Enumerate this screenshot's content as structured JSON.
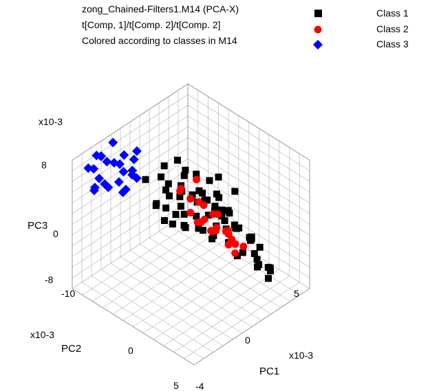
{
  "chart_data": {
    "type": "scatter",
    "title_lines": [
      "zong_Chained-Filters1.M14 (PCA-X)",
      "t[Comp, 1]/t[Comp. 2]/t[Comp. 2]",
      "Colored according to classes in M14"
    ],
    "legend_placement": "top-right",
    "axes": {
      "pc1": {
        "label": "PC1",
        "scale": "x10-3",
        "ticks": [
          "-4",
          "0",
          "5"
        ]
      },
      "pc2": {
        "label": "PC2",
        "scale": "x10-3",
        "ticks": [
          "-10",
          "0",
          "5"
        ]
      },
      "pc3": {
        "label": "PC3",
        "scale": "x10-3",
        "ticks": [
          "8",
          "0",
          "-8"
        ]
      }
    },
    "ranges": {
      "pc1": [
        -4,
        7
      ],
      "pc2": [
        -10,
        5
      ],
      "pc3": [
        -8,
        8
      ]
    },
    "grid": true,
    "series": [
      {
        "name": "Class 1",
        "color": "#000000",
        "marker": "square",
        "points": [
          [
            -2.5,
            1.5,
            2.0
          ],
          [
            -2.0,
            1.8,
            1.0
          ],
          [
            -3.0,
            0.5,
            1.5
          ],
          [
            -1.5,
            2.5,
            0.5
          ],
          [
            -2.8,
            2.8,
            -1.0
          ],
          [
            -3.2,
            1.0,
            -2.0
          ],
          [
            -1.0,
            3.5,
            -0.5
          ],
          [
            -2.2,
            3.0,
            -3.0
          ],
          [
            -1.8,
            0.8,
            -1.5
          ],
          [
            -0.5,
            4.0,
            -2.5
          ],
          [
            -3.5,
            3.5,
            -4.0
          ],
          [
            -0.8,
            1.5,
            -3.5
          ],
          [
            -2.6,
            4.2,
            -5.0
          ],
          [
            -1.2,
            4.5,
            -4.5
          ],
          [
            -3.0,
            2.0,
            -5.5
          ],
          [
            0.0,
            3.0,
            -1.0
          ],
          [
            0.5,
            2.0,
            -2.0
          ],
          [
            -0.2,
            1.0,
            0.5
          ],
          [
            0.8,
            3.5,
            -3.0
          ],
          [
            1.2,
            2.5,
            -4.0
          ],
          [
            1.5,
            1.5,
            -1.5
          ],
          [
            2.0,
            3.0,
            -3.5
          ],
          [
            1.0,
            4.0,
            -5.0
          ],
          [
            2.5,
            2.0,
            -2.5
          ],
          [
            2.8,
            3.5,
            -4.5
          ],
          [
            3.0,
            1.0,
            -1.0
          ],
          [
            2.2,
            0.5,
            0.5
          ],
          [
            3.5,
            2.5,
            -3.0
          ],
          [
            4.0,
            1.5,
            -2.0
          ],
          [
            3.2,
            4.0,
            -5.5
          ],
          [
            -1.5,
            -1.0,
            0.0
          ],
          [
            -0.8,
            -0.5,
            -1.0
          ],
          [
            0.2,
            -1.5,
            -0.5
          ],
          [
            1.0,
            -0.8,
            -2.0
          ],
          [
            -2.0,
            -2.0,
            -1.0
          ],
          [
            -2.5,
            0.0,
            -3.0
          ],
          [
            -1.0,
            0.2,
            -4.0
          ],
          [
            0.5,
            0.5,
            -3.5
          ],
          [
            1.8,
            -0.2,
            -3.0
          ],
          [
            2.5,
            -1.0,
            -1.5
          ],
          [
            -3.5,
            0.8,
            -0.5
          ],
          [
            -3.8,
            2.2,
            -2.5
          ],
          [
            -0.3,
            2.2,
            -1.5
          ],
          [
            1.3,
            1.0,
            -0.8
          ],
          [
            -1.3,
            3.0,
            -2.0
          ],
          [
            0.0,
            4.5,
            -4.0
          ],
          [
            2.0,
            4.5,
            -6.0
          ],
          [
            3.8,
            3.0,
            -6.5
          ],
          [
            4.5,
            3.5,
            -7.0
          ],
          [
            4.2,
            2.2,
            -5.0
          ],
          [
            3.6,
            0.5,
            -4.0
          ],
          [
            4.8,
            1.0,
            -3.0
          ],
          [
            5.0,
            2.5,
            -5.5
          ],
          [
            -0.5,
            -2.0,
            -2.0
          ],
          [
            -1.8,
            -1.2,
            -3.2
          ],
          [
            0.8,
            -2.2,
            -1.2
          ],
          [
            -2.8,
            -0.8,
            -2.2
          ],
          [
            -3.3,
            -1.5,
            0.8
          ],
          [
            -0.6,
            3.8,
            -6.0
          ],
          [
            -2.0,
            4.8,
            -6.5
          ],
          [
            0.3,
            2.8,
            1.5
          ],
          [
            1.5,
            3.2,
            0.5
          ],
          [
            2.8,
            0.0,
            0.0
          ],
          [
            3.5,
            -0.5,
            -1.8
          ],
          [
            4.3,
            0.2,
            -2.8
          ],
          [
            5.2,
            0.8,
            -4.2
          ],
          [
            5.5,
            1.8,
            -6.0
          ],
          [
            4.0,
            4.2,
            -7.5
          ],
          [
            1.0,
            0.0,
            1.0
          ],
          [
            -1.0,
            -0.2,
            1.2
          ]
        ]
      },
      {
        "name": "Class 2",
        "color": "#ff0000",
        "marker": "circle",
        "points": [
          [
            3.0,
            -3.0,
            4.0
          ],
          [
            3.5,
            -2.5,
            3.0
          ],
          [
            4.0,
            -3.5,
            2.0
          ],
          [
            2.5,
            -4.0,
            5.0
          ],
          [
            4.5,
            -2.0,
            1.5
          ],
          [
            3.8,
            -4.5,
            3.5
          ],
          [
            5.0,
            -3.0,
            2.5
          ],
          [
            2.0,
            -2.5,
            6.0
          ],
          [
            4.2,
            -1.5,
            0.5
          ],
          [
            5.5,
            -2.5,
            1.0
          ],
          [
            3.2,
            -5.0,
            4.5
          ],
          [
            4.8,
            -4.0,
            3.0
          ],
          [
            2.8,
            -3.5,
            2.0
          ],
          [
            5.2,
            -1.0,
            -0.5
          ],
          [
            3.6,
            -2.2,
            1.2
          ],
          [
            4.4,
            -3.2,
            4.2
          ],
          [
            2.2,
            -4.8,
            6.5
          ],
          [
            5.8,
            -3.8,
            2.0
          ],
          [
            3.0,
            -1.8,
            0.0
          ],
          [
            4.6,
            -5.2,
            5.0
          ],
          [
            2.6,
            -5.5,
            7.0
          ],
          [
            5.0,
            -1.8,
            -1.0
          ],
          [
            4.0,
            -0.8,
            -0.8
          ],
          [
            3.4,
            -4.2,
            5.5
          ],
          [
            1.8,
            -3.0,
            3.8
          ]
        ]
      },
      {
        "name": "Class 3",
        "color": "#0000ff",
        "marker": "diamond",
        "points": [
          [
            -3.0,
            -6.0,
            6.0
          ],
          [
            -2.5,
            -5.5,
            5.0
          ],
          [
            -3.5,
            -7.0,
            7.0
          ],
          [
            -2.0,
            -4.5,
            4.0
          ],
          [
            -4.0,
            -6.5,
            3.5
          ],
          [
            -3.2,
            -8.0,
            8.0
          ],
          [
            -2.8,
            -5.0,
            6.5
          ],
          [
            -3.8,
            -7.5,
            5.5
          ],
          [
            -2.2,
            -6.0,
            3.0
          ],
          [
            -1.8,
            -7.0,
            7.5
          ],
          [
            -3.0,
            -8.5,
            4.5
          ],
          [
            -4.2,
            -5.5,
            2.0
          ],
          [
            -2.6,
            -4.0,
            5.5
          ],
          [
            -3.6,
            -6.8,
            6.8
          ],
          [
            -1.5,
            -5.8,
            6.2
          ],
          [
            -2.4,
            -7.8,
            7.8
          ],
          [
            -3.4,
            -4.8,
            2.5
          ],
          [
            -4.5,
            -7.2,
            4.8
          ],
          [
            -2.0,
            -8.2,
            5.2
          ],
          [
            -1.6,
            -6.5,
            4.2
          ],
          [
            -3.8,
            -5.0,
            7.2
          ],
          [
            -2.9,
            -3.8,
            3.2
          ],
          [
            -4.8,
            -6.0,
            1.0
          ],
          [
            -2.2,
            -4.2,
            7.0
          ]
        ]
      }
    ]
  }
}
